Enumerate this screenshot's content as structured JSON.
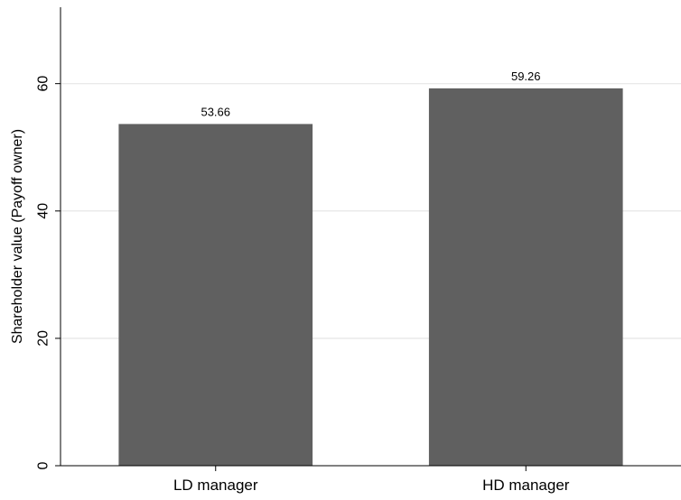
{
  "chart_data": {
    "type": "bar",
    "categories": [
      "LD manager",
      "HD manager"
    ],
    "values": [
      53.66,
      59.26
    ],
    "data_labels": [
      "53.66",
      "59.26"
    ],
    "ylabel": "Shareholder value (Payoff owner)",
    "ylim": [
      0,
      72
    ],
    "yticks": [
      0,
      20,
      40,
      60
    ],
    "ytick_labels": [
      "0",
      "20",
      "40",
      "60"
    ],
    "grid": "horizontal",
    "colors": {
      "bar": "#606060",
      "grid": "#e6e6e6",
      "axis": "#000000",
      "background": "#ffffff"
    }
  }
}
